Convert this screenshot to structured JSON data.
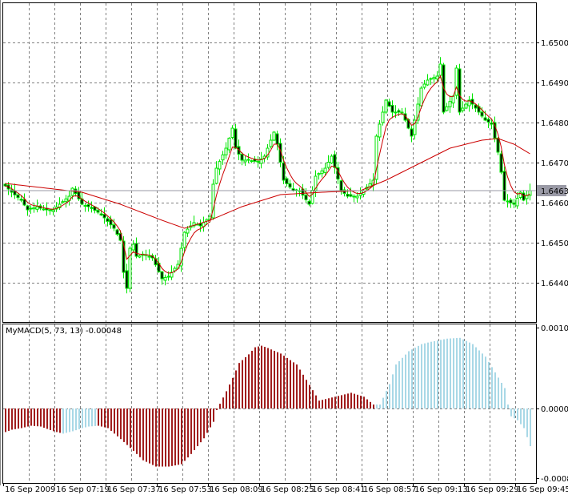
{
  "chart_data": [
    {
      "type": "candlestick",
      "symbol_pane": "price",
      "y_ticks": [
        "1.6500",
        "1.6490",
        "1.6480",
        "1.6470",
        "1.6460",
        "1.6450",
        "1.6440"
      ],
      "ylim": [
        1.6432,
        1.651
      ],
      "grid": true,
      "current_price_label": "1.6463",
      "current_price": 1.6463,
      "bull_color": "#00e600",
      "bear_body_color": "#000000",
      "ma_color": "#cc0000",
      "close_points": [
        [
          0,
          1.64642
        ],
        [
          2,
          1.64626
        ],
        [
          5,
          1.64606
        ],
        [
          7,
          1.64582
        ],
        [
          10,
          1.6459
        ],
        [
          12,
          1.64582
        ],
        [
          15,
          1.64582
        ],
        [
          17,
          1.64596
        ],
        [
          20,
          1.64616
        ],
        [
          21,
          1.64636
        ],
        [
          24,
          1.64596
        ],
        [
          26,
          1.6459
        ],
        [
          29,
          1.64576
        ],
        [
          31,
          1.64562
        ],
        [
          34,
          1.64536
        ],
        [
          36,
          1.64506
        ],
        [
          37,
          1.64426
        ],
        [
          38,
          1.64386
        ],
        [
          39,
          1.64486
        ],
        [
          40,
          1.64496
        ],
        [
          41,
          1.64466
        ],
        [
          44,
          1.6447
        ],
        [
          46,
          1.64462
        ],
        [
          49,
          1.6441
        ],
        [
          51,
          1.64416
        ],
        [
          54,
          1.64446
        ],
        [
          56,
          1.64526
        ],
        [
          59,
          1.6455
        ],
        [
          61,
          1.64542
        ],
        [
          64,
          1.64566
        ],
        [
          65,
          1.64646
        ],
        [
          66,
          1.64686
        ],
        [
          69,
          1.64736
        ],
        [
          71,
          1.64786
        ],
        [
          72,
          1.64736
        ],
        [
          74,
          1.64706
        ],
        [
          76,
          1.64706
        ],
        [
          79,
          1.64702
        ],
        [
          81,
          1.64716
        ],
        [
          84,
          1.64776
        ],
        [
          85,
          1.64746
        ],
        [
          87,
          1.64656
        ],
        [
          90,
          1.6463
        ],
        [
          92,
          1.6463
        ],
        [
          95,
          1.64596
        ],
        [
          97,
          1.64666
        ],
        [
          100,
          1.64686
        ],
        [
          102,
          1.64716
        ],
        [
          105,
          1.6463
        ],
        [
          107,
          1.64616
        ],
        [
          110,
          1.64616
        ],
        [
          112,
          1.6463
        ],
        [
          115,
          1.64656
        ],
        [
          116,
          1.64766
        ],
        [
          119,
          1.64856
        ],
        [
          121,
          1.64826
        ],
        [
          124,
          1.64826
        ],
        [
          126,
          1.64786
        ],
        [
          127,
          1.64766
        ],
        [
          129,
          1.64846
        ],
        [
          130,
          1.64886
        ],
        [
          132,
          1.64906
        ],
        [
          135,
          1.64916
        ],
        [
          136,
          1.64946
        ],
        [
          137,
          1.64826
        ],
        [
          140,
          1.64866
        ],
        [
          141,
          1.64936
        ],
        [
          142,
          1.64826
        ],
        [
          145,
          1.64856
        ],
        [
          147,
          1.64836
        ],
        [
          150,
          1.64806
        ],
        [
          152,
          1.64796
        ],
        [
          154,
          1.64726
        ],
        [
          155,
          1.64676
        ],
        [
          156,
          1.64606
        ],
        [
          159,
          1.64596
        ],
        [
          161,
          1.64626
        ],
        [
          162,
          1.64606
        ],
        [
          164,
          1.6463
        ]
      ],
      "slow_ma_points": [
        [
          0,
          1.64648
        ],
        [
          24,
          1.64626
        ],
        [
          36,
          1.64596
        ],
        [
          49,
          1.64556
        ],
        [
          56,
          1.64536
        ],
        [
          64,
          1.64556
        ],
        [
          74,
          1.6459
        ],
        [
          86,
          1.6462
        ],
        [
          99,
          1.64626
        ],
        [
          111,
          1.6463
        ],
        [
          119,
          1.64656
        ],
        [
          129,
          1.64696
        ],
        [
          139,
          1.64736
        ],
        [
          149,
          1.64756
        ],
        [
          154,
          1.6476
        ],
        [
          159,
          1.64746
        ],
        [
          164,
          1.64722
        ]
      ]
    },
    {
      "type": "bar",
      "title": "MyMACD(5, 73, 13) -0.00048",
      "y_ticks": [
        "0.00103",
        "0.00000",
        "-0.00088"
      ],
      "ylim": [
        -0.00088,
        0.00103
      ],
      "colors": {
        "down": "#a01c1c",
        "up": "#a8d8e6"
      },
      "blue_bar_ranges": [
        [
          18,
          28
        ],
        [
          116,
          164
        ]
      ],
      "points": [
        [
          0,
          -0.0003
        ],
        [
          2,
          -0.00027
        ],
        [
          5,
          -0.00025
        ],
        [
          8,
          -0.00022
        ],
        [
          11,
          -0.00023
        ],
        [
          15,
          -0.00029
        ],
        [
          18,
          -0.00032
        ],
        [
          21,
          -0.00029
        ],
        [
          24,
          -0.00025
        ],
        [
          26,
          -0.00023
        ],
        [
          29,
          -0.00022
        ],
        [
          32,
          -0.00025
        ],
        [
          36,
          -0.00039
        ],
        [
          40,
          -0.00054
        ],
        [
          43,
          -0.00066
        ],
        [
          47,
          -0.00074
        ],
        [
          51,
          -0.00074
        ],
        [
          55,
          -0.00071
        ],
        [
          58,
          -0.00058
        ],
        [
          62,
          -0.00038
        ],
        [
          65,
          -0.00017
        ],
        [
          66,
          -2e-05
        ],
        [
          69,
          0.00022
        ],
        [
          71,
          0.00039
        ],
        [
          73,
          0.00058
        ],
        [
          76,
          0.00069
        ],
        [
          78,
          0.00078
        ],
        [
          80,
          0.0008
        ],
        [
          82,
          0.00077
        ],
        [
          86,
          0.0007
        ],
        [
          91,
          0.00056
        ],
        [
          95,
          0.0003
        ],
        [
          98,
          0.0001
        ],
        [
          101,
          0.00013
        ],
        [
          103,
          0.00015
        ],
        [
          108,
          0.0002
        ],
        [
          112,
          0.00015
        ],
        [
          115,
          5e-05
        ],
        [
          117,
          5e-05
        ],
        [
          120,
          0.00031
        ],
        [
          122,
          0.00056
        ],
        [
          126,
          0.00073
        ],
        [
          130,
          0.00082
        ],
        [
          133,
          0.00085
        ],
        [
          138,
          0.00089
        ],
        [
          142,
          0.0009
        ],
        [
          146,
          0.00082
        ],
        [
          150,
          0.00066
        ],
        [
          153,
          0.00046
        ],
        [
          156,
          0.00026
        ],
        [
          157,
          5e-05
        ],
        [
          158,
          -0.0001
        ],
        [
          160,
          -0.00015
        ],
        [
          162,
          -0.00025
        ],
        [
          164,
          -0.00048
        ]
      ]
    }
  ],
  "x_axis": {
    "labels": [
      "16 Sep 2009",
      "16 Sep 07:19",
      "16 Sep 07:37",
      "16 Sep 07:53",
      "16 Sep 08:09",
      "16 Sep 08:25",
      "16 Sep 08:41",
      "16 Sep 08:57",
      "16 Sep 09:13",
      "16 Sep 09:29",
      "16 Sep 09:45"
    ]
  },
  "bar_count": 165
}
